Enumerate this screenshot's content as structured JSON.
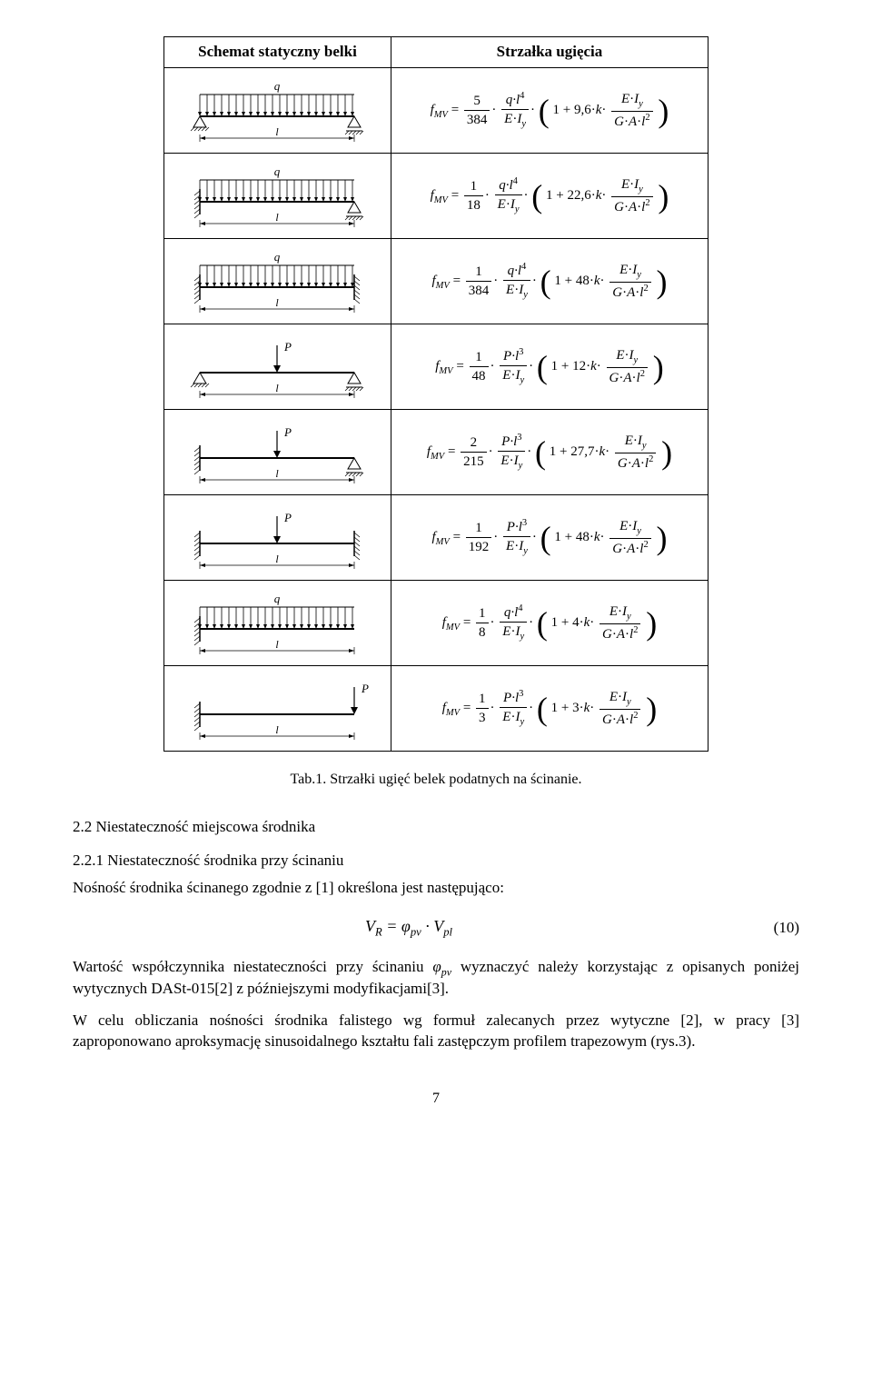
{
  "table": {
    "header_schema": "Schemat statyczny belki",
    "header_formula": "Strzałka ugięcia",
    "rows": [
      {
        "diagram": {
          "support_left": "pin-roller",
          "support_right": "pin-roller",
          "load_type": "udl",
          "load_label": "q",
          "span_label": "l"
        },
        "formula": {
          "lead_num": "5",
          "lead_den": "384",
          "main_num": "q·l",
          "main_exp": "4",
          "coef": "9,6",
          "load_term_num": "q·l",
          "load_term_exp": "4"
        }
      },
      {
        "diagram": {
          "support_left": "fixed",
          "support_right": "pin-roller",
          "load_type": "udl",
          "load_label": "q",
          "span_label": "l"
        },
        "formula": {
          "lead_num": "1",
          "lead_den": "18",
          "main_num": "q·l",
          "main_exp": "4",
          "coef": "22,6",
          "load_term_num": "q·l",
          "load_term_exp": "4"
        }
      },
      {
        "diagram": {
          "support_left": "fixed",
          "support_right": "fixed",
          "load_type": "udl",
          "load_label": "q",
          "span_label": "l"
        },
        "formula": {
          "lead_num": "1",
          "lead_den": "384",
          "main_num": "q·l",
          "main_exp": "4",
          "coef": "48",
          "load_term_num": "q·l",
          "load_term_exp": "4"
        }
      },
      {
        "diagram": {
          "support_left": "pin-roller",
          "support_right": "pin-roller",
          "load_type": "point",
          "load_label": "P",
          "span_label": "l"
        },
        "formula": {
          "lead_num": "1",
          "lead_den": "48",
          "main_num": "P·l",
          "main_exp": "3",
          "coef": "12",
          "load_term_num": "P·l",
          "load_term_exp": "3"
        }
      },
      {
        "diagram": {
          "support_left": "fixed",
          "support_right": "pin-roller",
          "load_type": "point",
          "load_label": "P",
          "span_label": "l"
        },
        "formula": {
          "lead_num": "2",
          "lead_den": "215",
          "main_num": "P·l",
          "main_exp": "3",
          "coef": "27,7",
          "load_term_num": "P·l",
          "load_term_exp": "3"
        }
      },
      {
        "diagram": {
          "support_left": "fixed",
          "support_right": "fixed",
          "load_type": "point",
          "load_label": "P",
          "span_label": "l"
        },
        "formula": {
          "lead_num": "1",
          "lead_den": "192",
          "main_num": "P·l",
          "main_exp": "3",
          "coef": "48",
          "load_term_num": "P·l",
          "load_term_exp": "3"
        }
      },
      {
        "diagram": {
          "support_left": "fixed",
          "support_right": "free",
          "load_type": "udl",
          "load_label": "q",
          "span_label": "l"
        },
        "formula": {
          "lead_num": "1",
          "lead_den": "8",
          "main_num": "q·l",
          "main_exp": "4",
          "coef": "4",
          "load_term_num": "q·l",
          "load_term_exp": "4"
        }
      },
      {
        "diagram": {
          "support_left": "fixed",
          "support_right": "free",
          "load_type": "point_end",
          "load_label": "P",
          "span_label": "l"
        },
        "formula": {
          "lead_num": "1",
          "lead_den": "3",
          "main_num": "P·l",
          "main_exp": "3",
          "coef": "3",
          "load_term_num": "P·l",
          "load_term_exp": "3"
        }
      }
    ]
  },
  "caption": "Tab.1. Strzałki ugięć belek podatnych na ścinanie.",
  "section1": "2.2 Niestateczność miejscowa środnika",
  "section2": "2.2.1 Niestateczność środnika przy ścinaniu",
  "para1": "Nośność środnika ścinanego zgodnie z [1] określona jest następująco:",
  "equation_text": "V_R = φ_pv · V_pl",
  "equation_num": "(10)",
  "para2_a": "Wartość współczynnika niestateczności przy ścinaniu ",
  "para2_sym": "φ",
  "para2_sub": "pv",
  "para2_b": " wyznaczyć należy korzystając z opisanych poniżej wytycznych DASt-015[2] z późniejszymi modyfikacjami[3].",
  "para3": "W celu obliczania nośności środnika falistego wg formuł zalecanych przez wytyczne [2], w pracy [3] zaproponowano aproksymację sinusoidalnego kształtu fali zastępczym profilem trapezowym (rys.3).",
  "page_number": "7",
  "style": {
    "beam_stroke": "#000000",
    "arrow_fill": "#000000",
    "hatch_stroke": "#000000",
    "font_italic_label": "italic 13px Times New Roman"
  }
}
